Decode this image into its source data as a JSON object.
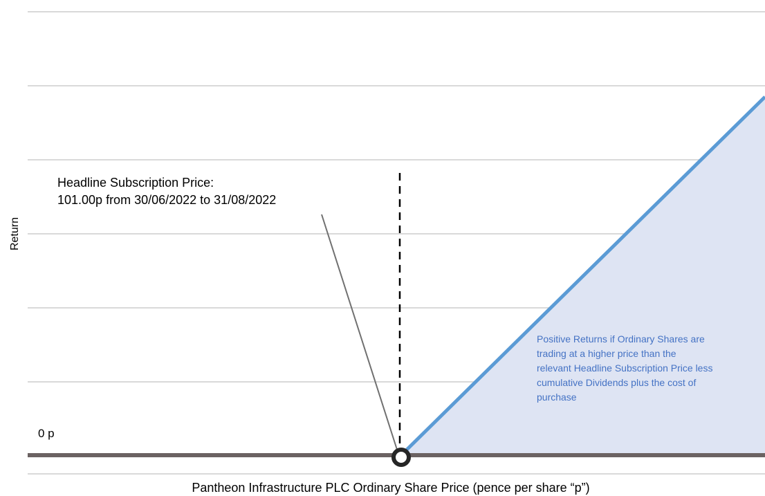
{
  "chart_data": {
    "type": "line",
    "title": "",
    "xlabel": "Pantheon Infrastructure PLC Ordinary Share Price (pence per share “p”)",
    "ylabel": "Return",
    "y_zero_label": "0 p",
    "grid": true,
    "legend": "none",
    "colors": {
      "payoff_line": "#5b9bd5",
      "payoff_fill": "#dee4f3",
      "baseline": "#6b6262",
      "gridline": "#d9d9d9",
      "annotation_text": "#4472c4"
    },
    "strike_marker": {
      "title": "Headline Subscription Price:",
      "detail": "101.00p from 30/06/2022 to 31/08/2022"
    },
    "region_annotation": [
      "Positive Returns if Ordinary Shares are",
      "trading at a higher price than the",
      "relevant Headline Subscription Price less",
      "cumulative Dividends plus the cost of",
      "purchase"
    ]
  }
}
